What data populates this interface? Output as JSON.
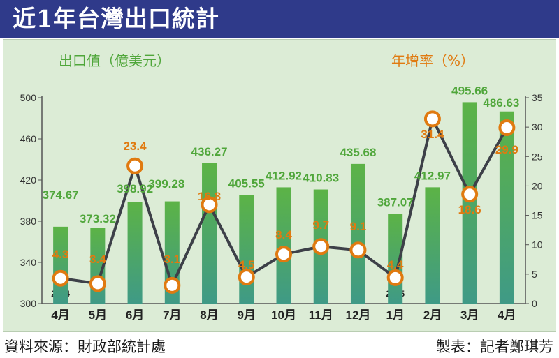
{
  "header": {
    "title": "近1年台灣出口統計"
  },
  "footer": {
    "source": "資料來源：財政部統計處",
    "credit": "製表：記者鄭琪芳"
  },
  "chart_data": {
    "type": "bar",
    "categories": [
      "4月",
      "5月",
      "6月",
      "7月",
      "8月",
      "9月",
      "10月",
      "11月",
      "12月",
      "1月",
      "2月",
      "3月",
      "4月"
    ],
    "year_markers": [
      {
        "index": 0,
        "label": "2024"
      },
      {
        "index": 9,
        "label": "2025"
      }
    ],
    "ylabel": "出口值（億美元）",
    "y2label": "年增率（%）",
    "ylim": [
      300,
      500
    ],
    "y2lim": [
      0,
      35
    ],
    "yticks": [
      300,
      340,
      380,
      420,
      460,
      500
    ],
    "y2ticks": [
      0,
      5,
      10,
      15,
      20,
      25,
      30,
      35
    ],
    "series": [
      {
        "type": "bar",
        "axis": "left",
        "values": [
          374.67,
          373.32,
          398.92,
          399.28,
          436.27,
          405.55,
          412.92,
          410.83,
          435.68,
          387.07,
          412.97,
          495.66,
          486.63
        ],
        "labels": [
          "374.67",
          "373.32",
          "398.92",
          "399.28",
          "436.27",
          "405.55",
          "412.92",
          "410.83",
          "435.68",
          "387.07",
          "412.97",
          "495.66",
          "486.63"
        ],
        "color": "#4fa63a"
      },
      {
        "type": "line",
        "axis": "right",
        "values": [
          4.3,
          3.4,
          23.4,
          3.1,
          16.8,
          4.5,
          8.4,
          9.7,
          9.1,
          4.4,
          31.4,
          18.6,
          29.9
        ],
        "labels": [
          "4.3",
          "3.4",
          "23.4",
          "3.1",
          "16.8",
          "4.5",
          "8.4",
          "9.7",
          "9.1",
          "4.4",
          "31.4",
          "18.6",
          "29.9"
        ],
        "color": "#e07a10",
        "line_color": "#3d4048"
      }
    ],
    "grid": false
  }
}
